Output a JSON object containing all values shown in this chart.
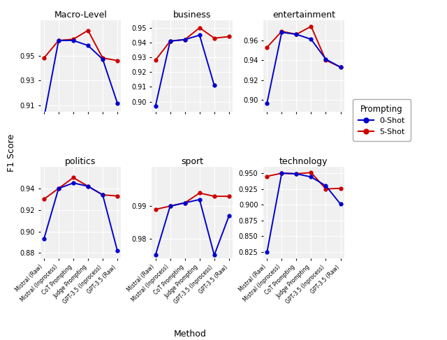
{
  "methods": [
    "Mistral (Raw)",
    "Mistral (Inprocess)",
    "CoT Prompting",
    "Judge Prompting",
    "GPT-3.5 (Inprocess)",
    "GPT-3.5 (Raw)"
  ],
  "subplots": [
    {
      "title": "Macro-Level",
      "ylim": [
        0.905,
        0.978
      ],
      "yticks": [
        0.91,
        0.93,
        0.95
      ],
      "zero_shot": [
        0.9,
        0.962,
        0.962,
        0.958,
        0.947,
        0.912
      ],
      "five_shot": [
        0.948,
        0.962,
        0.963,
        0.97,
        0.948,
        0.946
      ]
    },
    {
      "title": "business",
      "ylim": [
        0.893,
        0.955
      ],
      "yticks": [
        0.9,
        0.91,
        0.92,
        0.93,
        0.94,
        0.95
      ],
      "zero_shot": [
        0.897,
        0.941,
        0.942,
        0.945,
        0.911,
        null
      ],
      "five_shot": [
        0.928,
        0.941,
        0.942,
        0.95,
        0.943,
        0.944
      ]
    },
    {
      "title": "entertainment",
      "ylim": [
        0.888,
        0.98
      ],
      "yticks": [
        0.9,
        0.92,
        0.94,
        0.96
      ],
      "zero_shot": [
        0.897,
        0.968,
        0.966,
        0.961,
        0.941,
        0.933
      ],
      "five_shot": [
        0.953,
        0.969,
        0.966,
        0.974,
        0.94,
        0.933
      ]
    },
    {
      "title": "politics",
      "ylim": [
        0.875,
        0.96
      ],
      "yticks": [
        0.88,
        0.9,
        0.92,
        0.94
      ],
      "zero_shot": [
        0.893,
        0.94,
        0.945,
        0.942,
        0.934,
        0.882
      ],
      "five_shot": [
        0.93,
        0.94,
        0.95,
        0.942,
        0.934,
        0.933
      ]
    },
    {
      "title": "sport",
      "ylim": [
        0.974,
        1.002
      ],
      "yticks": [
        0.98,
        0.99
      ],
      "zero_shot": [
        0.975,
        0.99,
        0.991,
        0.992,
        0.975,
        0.987
      ],
      "five_shot": [
        0.989,
        0.99,
        0.991,
        0.994,
        0.993,
        0.993
      ]
    },
    {
      "title": "technology",
      "ylim": [
        0.815,
        0.96
      ],
      "yticks": [
        0.825,
        0.85,
        0.875,
        0.9,
        0.925,
        0.95
      ],
      "zero_shot": [
        0.825,
        0.95,
        0.949,
        0.944,
        0.93,
        0.901
      ],
      "five_shot": [
        0.945,
        0.95,
        0.949,
        0.951,
        0.925,
        0.926
      ]
    }
  ],
  "color_zero": "#0000CC",
  "color_five": "#CC0000",
  "xlabel": "Method",
  "ylabel": "F1 Score",
  "legend_title": "Prompting",
  "legend_labels": [
    "0-Shot",
    "5-Shot"
  ],
  "bg_color": "#f0f0f0"
}
